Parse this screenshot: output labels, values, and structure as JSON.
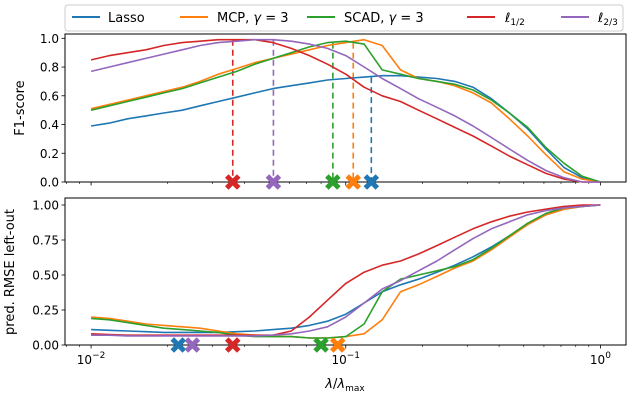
{
  "legend": {
    "placement": "top, above plots",
    "entries": [
      {
        "label": "Lasso",
        "color": "#1f77b4"
      },
      {
        "label": "MCP, γ = 3",
        "color": "#ff7f0e"
      },
      {
        "label": "SCAD, γ = 3",
        "color": "#2ca02c"
      },
      {
        "label": "ℓ1/2",
        "color": "#d62728"
      },
      {
        "label": "ℓ2/3",
        "color": "#9467bd"
      }
    ]
  },
  "chart_data": [
    {
      "type": "line",
      "xscale": "log",
      "xlim": [
        0.0079,
        1.26
      ],
      "ylim": [
        0,
        1.03
      ],
      "ylabel": "F1-score",
      "yticks": [
        "0.0",
        "0.2",
        "0.4",
        "0.6",
        "0.8",
        "1.0"
      ],
      "grid": false,
      "x": [
        0.01,
        0.0118,
        0.0139,
        0.0164,
        0.0193,
        0.0228,
        0.0268,
        0.0316,
        0.0373,
        0.0439,
        0.0518,
        0.0611,
        0.072,
        0.0848,
        0.1,
        0.118,
        0.139,
        0.164,
        0.193,
        0.228,
        0.268,
        0.316,
        0.373,
        0.439,
        0.518,
        0.611,
        0.72,
        0.848,
        1.0
      ],
      "series": [
        {
          "name": "Lasso",
          "color": "#1f77b4",
          "values": [
            0.39,
            0.41,
            0.44,
            0.46,
            0.48,
            0.5,
            0.53,
            0.56,
            0.59,
            0.62,
            0.65,
            0.67,
            0.69,
            0.71,
            0.72,
            0.73,
            0.74,
            0.74,
            0.73,
            0.72,
            0.7,
            0.66,
            0.58,
            0.48,
            0.37,
            0.23,
            0.1,
            0.03,
            0.0
          ]
        },
        {
          "name": "MCP, γ = 3",
          "color": "#ff7f0e",
          "values": [
            0.51,
            0.54,
            0.57,
            0.6,
            0.63,
            0.66,
            0.7,
            0.75,
            0.79,
            0.83,
            0.86,
            0.89,
            0.92,
            0.95,
            0.97,
            0.99,
            0.95,
            0.78,
            0.72,
            0.7,
            0.67,
            0.62,
            0.55,
            0.44,
            0.32,
            0.19,
            0.07,
            0.02,
            0.0
          ]
        },
        {
          "name": "SCAD, γ = 3",
          "color": "#2ca02c",
          "values": [
            0.5,
            0.53,
            0.56,
            0.59,
            0.62,
            0.65,
            0.69,
            0.73,
            0.77,
            0.82,
            0.86,
            0.9,
            0.94,
            0.97,
            0.98,
            0.96,
            0.78,
            0.75,
            0.72,
            0.7,
            0.68,
            0.64,
            0.57,
            0.48,
            0.38,
            0.24,
            0.13,
            0.04,
            0.0
          ]
        },
        {
          "name": "ℓ1/2",
          "color": "#d62728",
          "values": [
            0.85,
            0.88,
            0.9,
            0.92,
            0.95,
            0.97,
            0.98,
            0.99,
            0.99,
            0.99,
            0.97,
            0.93,
            0.88,
            0.82,
            0.75,
            0.66,
            0.6,
            0.56,
            0.5,
            0.44,
            0.38,
            0.32,
            0.25,
            0.18,
            0.12,
            0.06,
            0.02,
            0.0,
            0.0
          ]
        },
        {
          "name": "ℓ2/3",
          "color": "#9467bd",
          "values": [
            0.77,
            0.8,
            0.83,
            0.86,
            0.89,
            0.92,
            0.95,
            0.97,
            0.98,
            0.99,
            0.99,
            0.98,
            0.96,
            0.93,
            0.88,
            0.8,
            0.72,
            0.65,
            0.58,
            0.52,
            0.46,
            0.39,
            0.31,
            0.23,
            0.15,
            0.08,
            0.03,
            0.0,
            0.0
          ]
        }
      ],
      "markers": [
        {
          "series": "ℓ1/2",
          "x": 0.036,
          "color": "#d62728"
        },
        {
          "series": "ℓ2/3",
          "x": 0.052,
          "color": "#9467bd"
        },
        {
          "series": "SCAD, γ = 3",
          "x": 0.089,
          "color": "#2ca02c"
        },
        {
          "series": "MCP, γ = 3",
          "x": 0.107,
          "color": "#ff7f0e"
        },
        {
          "series": "Lasso",
          "x": 0.126,
          "color": "#1f77b4"
        }
      ]
    },
    {
      "type": "line",
      "xscale": "log",
      "xlim": [
        0.0079,
        1.26
      ],
      "ylim": [
        0,
        1.05
      ],
      "xlabel": "λ/λmax",
      "ylabel": "pred. RMSE left-out",
      "yticks": [
        "0.00",
        "0.25",
        "0.50",
        "0.75",
        "1.00"
      ],
      "xticks": [
        "10^-2",
        "10^-1",
        "10^0"
      ],
      "grid": false,
      "x": [
        0.01,
        0.0118,
        0.0139,
        0.0164,
        0.0193,
        0.0228,
        0.0268,
        0.0316,
        0.0373,
        0.0439,
        0.0518,
        0.0611,
        0.072,
        0.0848,
        0.1,
        0.118,
        0.139,
        0.164,
        0.193,
        0.228,
        0.268,
        0.316,
        0.373,
        0.439,
        0.518,
        0.611,
        0.72,
        0.848,
        1.0
      ],
      "series": [
        {
          "name": "Lasso",
          "color": "#1f77b4",
          "values": [
            0.11,
            0.105,
            0.1,
            0.095,
            0.09,
            0.09,
            0.09,
            0.09,
            0.095,
            0.1,
            0.11,
            0.12,
            0.14,
            0.17,
            0.22,
            0.3,
            0.38,
            0.43,
            0.47,
            0.52,
            0.57,
            0.63,
            0.7,
            0.78,
            0.86,
            0.93,
            0.97,
            0.99,
            1.0
          ]
        },
        {
          "name": "MCP, γ = 3",
          "color": "#ff7f0e",
          "values": [
            0.2,
            0.19,
            0.17,
            0.15,
            0.14,
            0.13,
            0.12,
            0.1,
            0.08,
            0.07,
            0.06,
            0.06,
            0.05,
            0.05,
            0.06,
            0.08,
            0.18,
            0.38,
            0.43,
            0.49,
            0.55,
            0.6,
            0.68,
            0.77,
            0.86,
            0.93,
            0.97,
            0.99,
            1.0
          ]
        },
        {
          "name": "SCAD, γ = 3",
          "color": "#2ca02c",
          "values": [
            0.19,
            0.18,
            0.16,
            0.14,
            0.12,
            0.11,
            0.1,
            0.09,
            0.07,
            0.06,
            0.06,
            0.06,
            0.05,
            0.05,
            0.06,
            0.15,
            0.38,
            0.47,
            0.5,
            0.53,
            0.56,
            0.61,
            0.69,
            0.78,
            0.87,
            0.94,
            0.98,
            0.99,
            1.0
          ]
        },
        {
          "name": "ℓ1/2",
          "color": "#d62728",
          "values": [
            0.08,
            0.075,
            0.07,
            0.07,
            0.07,
            0.07,
            0.07,
            0.07,
            0.07,
            0.07,
            0.07,
            0.1,
            0.2,
            0.32,
            0.44,
            0.52,
            0.57,
            0.6,
            0.65,
            0.71,
            0.77,
            0.83,
            0.88,
            0.92,
            0.95,
            0.97,
            0.99,
            1.0,
            1.0
          ]
        },
        {
          "name": "ℓ2/3",
          "color": "#9467bd",
          "values": [
            0.07,
            0.07,
            0.065,
            0.065,
            0.065,
            0.065,
            0.065,
            0.065,
            0.065,
            0.065,
            0.07,
            0.08,
            0.1,
            0.13,
            0.2,
            0.3,
            0.4,
            0.46,
            0.53,
            0.6,
            0.68,
            0.76,
            0.83,
            0.88,
            0.93,
            0.96,
            0.98,
            0.99,
            1.0
          ]
        }
      ],
      "markers": [
        {
          "series": "Lasso",
          "x": 0.022,
          "color": "#1f77b4"
        },
        {
          "series": "ℓ2/3",
          "x": 0.025,
          "color": "#9467bd"
        },
        {
          "series": "ℓ1/2",
          "x": 0.036,
          "color": "#d62728"
        },
        {
          "series": "SCAD, γ = 3",
          "x": 0.08,
          "color": "#2ca02c"
        },
        {
          "series": "MCP, γ = 3",
          "x": 0.093,
          "color": "#ff7f0e"
        }
      ]
    }
  ]
}
